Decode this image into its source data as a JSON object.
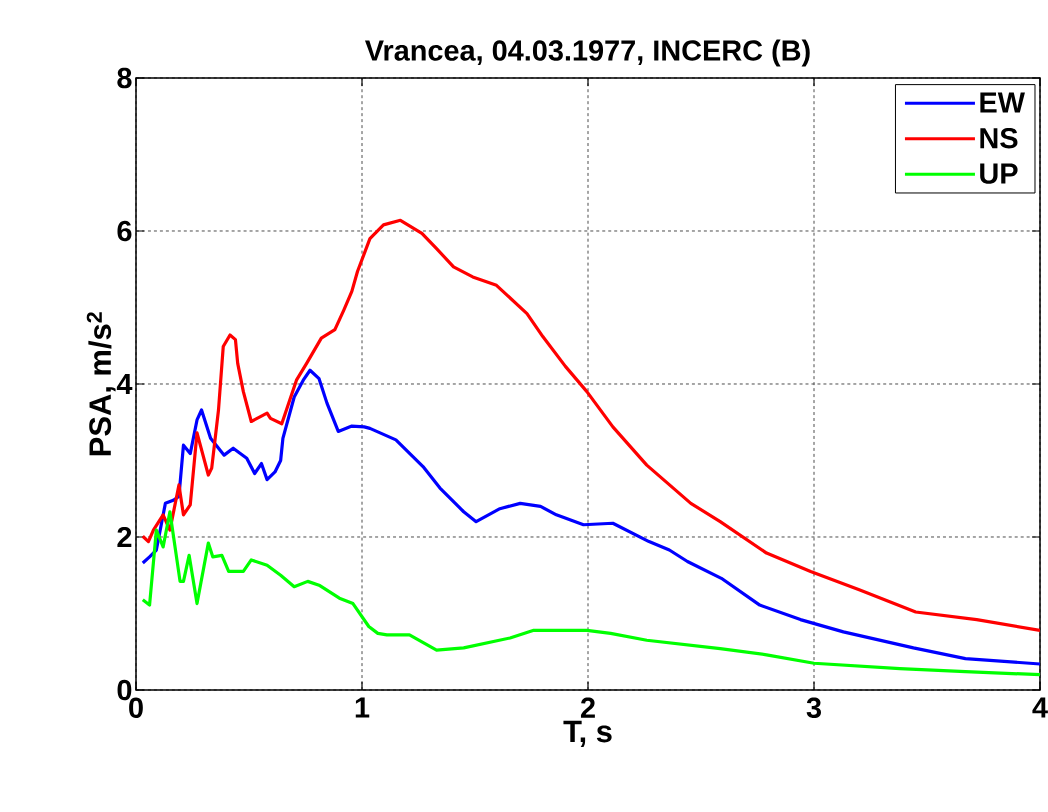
{
  "chart_data": {
    "type": "line",
    "title": "Vrancea, 04.03.1977, INCERC (B)",
    "xlabel": "T, s",
    "ylabel": "PSA, m/s$^{2}$",
    "xlim": [
      0,
      4
    ],
    "ylim": [
      0,
      8
    ],
    "xticks": [
      0,
      1,
      2,
      3,
      4
    ],
    "yticks": [
      0,
      2,
      4,
      6,
      8
    ],
    "grid": true,
    "legend": "top right",
    "line_style": "solid",
    "marker": "none",
    "series": [
      {
        "name": "EW",
        "color": "#0000ff",
        "x": [
          0.03,
          0.06,
          0.09,
          0.13,
          0.165,
          0.19,
          0.21,
          0.24,
          0.27,
          0.29,
          0.33,
          0.39,
          0.43,
          0.49,
          0.525,
          0.555,
          0.58,
          0.615,
          0.64,
          0.65,
          0.7,
          0.74,
          0.77,
          0.81,
          0.845,
          0.895,
          0.955,
          1.01,
          1.035,
          1.15,
          1.27,
          1.345,
          1.45,
          1.505,
          1.61,
          1.7,
          1.79,
          1.86,
          1.98,
          2.11,
          2.27,
          2.36,
          2.44,
          2.59,
          2.76,
          2.94,
          3.13,
          3.44,
          3.67,
          4.0
        ],
        "values": [
          1.66,
          1.74,
          1.83,
          2.44,
          2.48,
          2.53,
          3.2,
          3.09,
          3.53,
          3.66,
          3.29,
          3.07,
          3.16,
          3.03,
          2.83,
          2.96,
          2.75,
          2.85,
          3.0,
          3.29,
          3.83,
          4.05,
          4.18,
          4.07,
          3.75,
          3.38,
          3.45,
          3.44,
          3.42,
          3.27,
          2.92,
          2.64,
          2.33,
          2.2,
          2.37,
          2.44,
          2.4,
          2.29,
          2.16,
          2.18,
          1.94,
          1.83,
          1.68,
          1.46,
          1.11,
          0.92,
          0.76,
          0.55,
          0.41,
          0.34
        ]
      },
      {
        "name": "NS",
        "color": "#ff0000",
        "x": [
          0.03,
          0.055,
          0.077,
          0.12,
          0.15,
          0.19,
          0.21,
          0.24,
          0.27,
          0.32,
          0.335,
          0.365,
          0.386,
          0.416,
          0.44,
          0.45,
          0.475,
          0.51,
          0.58,
          0.595,
          0.645,
          0.67,
          0.71,
          0.755,
          0.82,
          0.88,
          0.92,
          0.955,
          0.98,
          1.035,
          1.095,
          1.17,
          1.265,
          1.33,
          1.405,
          1.49,
          1.595,
          1.73,
          1.8,
          1.9,
          1.995,
          2.11,
          2.26,
          2.455,
          2.585,
          2.79,
          2.985,
          3.2,
          3.45,
          3.72,
          4.0
        ],
        "values": [
          2.01,
          1.94,
          2.09,
          2.29,
          2.09,
          2.68,
          2.29,
          2.42,
          3.36,
          2.81,
          2.9,
          3.66,
          4.49,
          4.64,
          4.58,
          4.27,
          3.9,
          3.51,
          3.62,
          3.55,
          3.48,
          3.7,
          4.05,
          4.27,
          4.6,
          4.71,
          4.97,
          5.21,
          5.47,
          5.9,
          6.08,
          6.14,
          5.97,
          5.77,
          5.53,
          5.4,
          5.29,
          4.92,
          4.62,
          4.23,
          3.9,
          3.44,
          2.94,
          2.44,
          2.2,
          1.79,
          1.55,
          1.31,
          1.02,
          0.92,
          0.78
        ]
      },
      {
        "name": "UP",
        "color": "#00ff00",
        "x": [
          0.03,
          0.06,
          0.09,
          0.12,
          0.15,
          0.195,
          0.21,
          0.235,
          0.27,
          0.32,
          0.34,
          0.38,
          0.41,
          0.475,
          0.51,
          0.58,
          0.64,
          0.7,
          0.76,
          0.81,
          0.9,
          0.96,
          1.03,
          1.07,
          1.11,
          1.21,
          1.33,
          1.45,
          1.655,
          1.76,
          1.995,
          2.1,
          2.26,
          2.585,
          2.79,
          3.0,
          3.38,
          3.67,
          4.0
        ],
        "values": [
          1.18,
          1.11,
          2.09,
          1.87,
          2.33,
          1.42,
          1.42,
          1.76,
          1.13,
          1.92,
          1.74,
          1.76,
          1.55,
          1.55,
          1.7,
          1.63,
          1.5,
          1.35,
          1.42,
          1.37,
          1.2,
          1.13,
          0.83,
          0.74,
          0.72,
          0.72,
          0.52,
          0.55,
          0.68,
          0.78,
          0.78,
          0.74,
          0.65,
          0.54,
          0.46,
          0.35,
          0.28,
          0.24,
          0.2
        ]
      }
    ]
  }
}
